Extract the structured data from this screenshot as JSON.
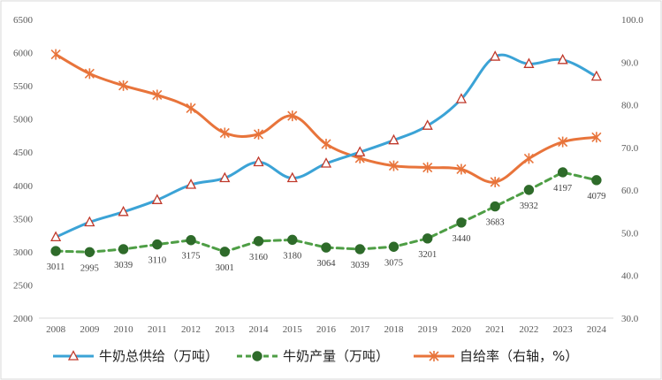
{
  "chart_data": {
    "type": "line",
    "categories": [
      "2008",
      "2009",
      "2010",
      "2011",
      "2012",
      "2013",
      "2014",
      "2015",
      "2016",
      "2017",
      "2018",
      "2019",
      "2020",
      "2021",
      "2022",
      "2023",
      "2024"
    ],
    "series": [
      {
        "name": "牛奶总供给（万吨）",
        "axis": "left",
        "color": "#3BA3D6",
        "marker": "triangle",
        "values": [
          3220,
          3445,
          3600,
          3780,
          4010,
          4110,
          4350,
          4110,
          4330,
          4500,
          4680,
          4900,
          5300,
          5940,
          5830,
          5890,
          5640
        ]
      },
      {
        "name": "牛奶产量（万吨）",
        "axis": "left",
        "color": "#4E9E45",
        "marker": "circle",
        "dashed": true,
        "values": [
          3011,
          2995,
          3039,
          3110,
          3175,
          3001,
          3160,
          3180,
          3064,
          3039,
          3075,
          3201,
          3440,
          3683,
          3932,
          4197,
          4079
        ],
        "labels": [
          "3011",
          "2995",
          "3039",
          "3110",
          "3175",
          "3001",
          "3160",
          "3180",
          "3064",
          "3039",
          "3075",
          "3201",
          "3440",
          "3683",
          "3932",
          "4197",
          "4079"
        ]
      },
      {
        "name": "自给率（右轴，%）",
        "axis": "right",
        "color": "#E8743B",
        "marker": "star",
        "values": [
          91.8,
          87.3,
          84.5,
          82.3,
          79.2,
          73.4,
          73.1,
          77.4,
          70.8,
          67.5,
          65.7,
          65.3,
          64.9,
          61.9,
          67.4,
          71.3,
          72.4
        ]
      }
    ],
    "left_ticks": [
      "6500",
      "6000",
      "5500",
      "5000",
      "4500",
      "4000",
      "3500",
      "3000",
      "2500",
      "2000"
    ],
    "right_ticks": [
      "100.0",
      "90.0",
      "80.0",
      "70.0",
      "60.0",
      "50.0",
      "40.0",
      "30.0"
    ],
    "ylim_left": [
      2000,
      6500
    ],
    "ylim_right": [
      30,
      100
    ],
    "grid": false,
    "legend_position": "bottom"
  }
}
